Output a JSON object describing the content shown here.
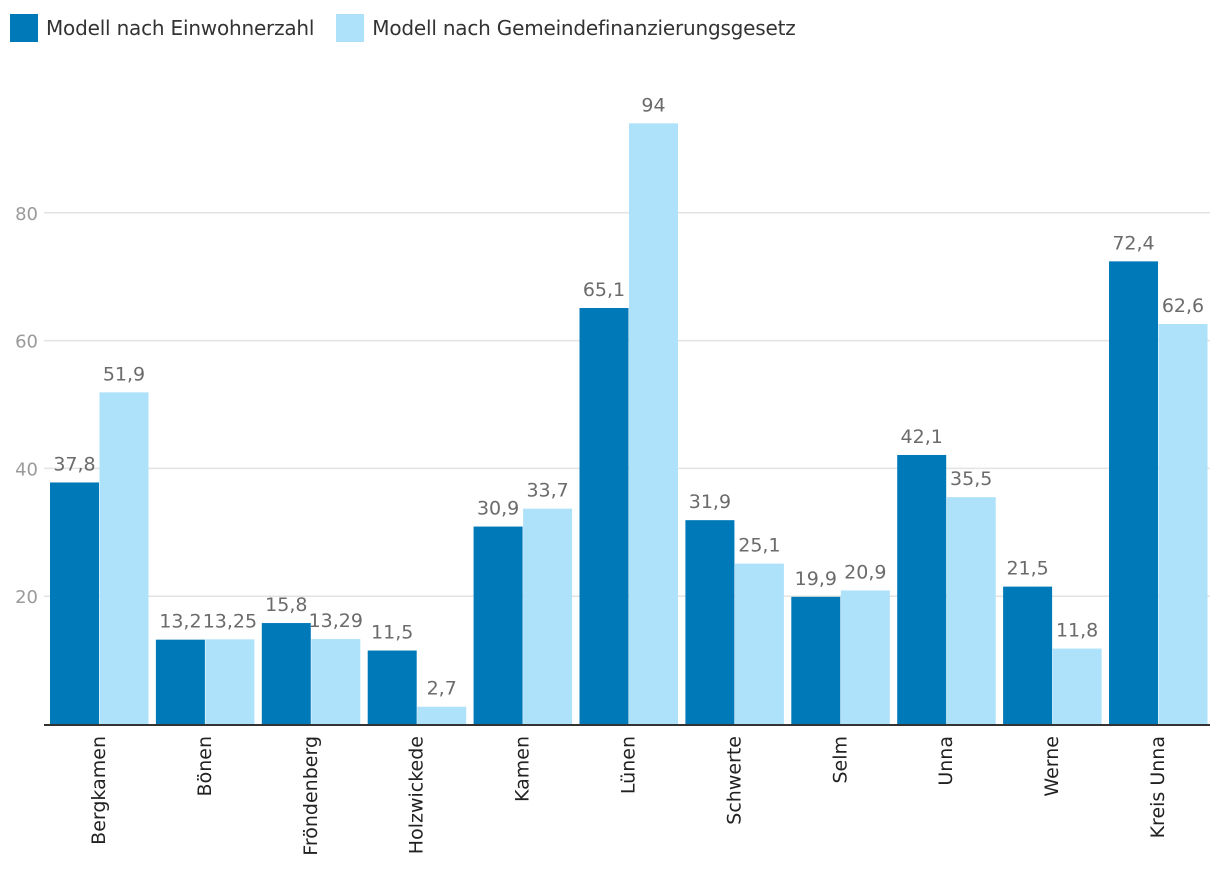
{
  "chart_data": {
    "type": "bar",
    "title": "",
    "xlabel": "",
    "ylabel": "",
    "ylim": [
      0,
      100
    ],
    "yticks": [
      20,
      40,
      60,
      80
    ],
    "grid": true,
    "legend_position": "top-left",
    "categories": [
      "Bergkamen",
      "Bönen",
      "Fröndenberg",
      "Holzwickede",
      "Kamen",
      "Lünen",
      "Schwerte",
      "Selm",
      "Unna",
      "Werne",
      "Kreis Unna"
    ],
    "series": [
      {
        "name": "Modell nach Einwohnerzahl",
        "color": "#0079b9",
        "values": [
          37.8,
          13.2,
          15.8,
          11.5,
          30.9,
          65.1,
          31.9,
          19.9,
          42.1,
          21.5,
          72.4
        ],
        "labels": [
          "37,8",
          "13,2",
          "15,8",
          "11,5",
          "30,9",
          "65,1",
          "31,9",
          "19,9",
          "42,1",
          "21,5",
          "72,4"
        ]
      },
      {
        "name": "Modell nach Gemeindefinanzierungsgesetz",
        "color": "#aee1fa",
        "values": [
          51.9,
          13.25,
          13.29,
          2.7,
          33.7,
          94,
          25.1,
          20.9,
          35.5,
          11.8,
          62.6
        ],
        "labels": [
          "51,9",
          "13,25",
          "13,29",
          "2,7",
          "33,7",
          "94",
          "25,1",
          "20,9",
          "35,5",
          "11,8",
          "62,6"
        ]
      }
    ]
  }
}
